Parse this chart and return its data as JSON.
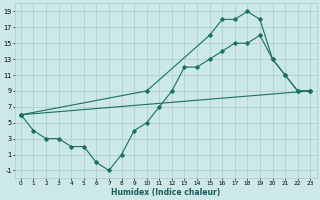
{
  "xlabel": "Humidex (Indice chaleur)",
  "bg_color": "#cce8e8",
  "grid_color": "#aacccc",
  "line_color": "#1a7060",
  "xlim": [
    -0.5,
    23.5
  ],
  "ylim": [
    -2,
    20
  ],
  "xticks": [
    0,
    1,
    2,
    3,
    4,
    5,
    6,
    7,
    8,
    9,
    10,
    11,
    12,
    13,
    14,
    15,
    16,
    17,
    18,
    19,
    20,
    21,
    22,
    23
  ],
  "yticks": [
    -1,
    1,
    3,
    5,
    7,
    9,
    11,
    13,
    15,
    17,
    19
  ],
  "line1_x": [
    0,
    1,
    2,
    3,
    4,
    5,
    6,
    7,
    8,
    9,
    10,
    11,
    12,
    13,
    14,
    15,
    16,
    17,
    18,
    19,
    20,
    21,
    22,
    23
  ],
  "line1_y": [
    6,
    4,
    3,
    3,
    2,
    2,
    0,
    -1,
    1,
    4,
    5,
    7,
    9,
    12,
    12,
    13,
    14,
    15,
    15,
    16,
    13,
    11,
    9,
    9
  ],
  "line2_x": [
    0,
    23
  ],
  "line2_y": [
    6,
    9
  ],
  "line3_x": [
    0,
    10,
    15,
    16,
    17,
    18,
    19,
    20,
    21,
    22,
    23
  ],
  "line3_y": [
    6,
    9,
    16,
    18,
    18,
    19,
    18,
    13,
    11,
    9,
    9
  ]
}
